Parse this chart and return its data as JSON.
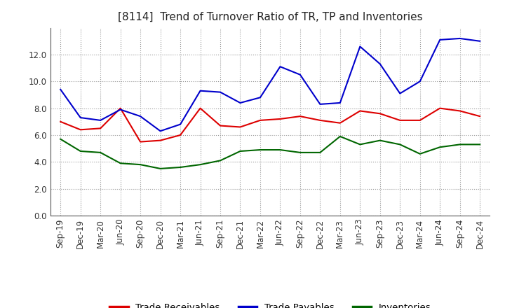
{
  "title": "[8114]  Trend of Turnover Ratio of TR, TP and Inventories",
  "x_labels": [
    "Sep-19",
    "Dec-19",
    "Mar-20",
    "Jun-20",
    "Sep-20",
    "Dec-20",
    "Mar-21",
    "Jun-21",
    "Sep-21",
    "Dec-21",
    "Mar-22",
    "Jun-22",
    "Sep-22",
    "Dec-22",
    "Mar-23",
    "Jun-23",
    "Sep-23",
    "Dec-23",
    "Mar-24",
    "Jun-24",
    "Sep-24",
    "Dec-24"
  ],
  "trade_receivables": [
    7.0,
    6.4,
    6.5,
    8.0,
    5.5,
    5.6,
    6.0,
    8.0,
    6.7,
    6.6,
    7.1,
    7.2,
    7.4,
    7.1,
    6.9,
    7.8,
    7.6,
    7.1,
    7.1,
    8.0,
    7.8,
    7.4
  ],
  "trade_payables": [
    9.4,
    7.3,
    7.1,
    7.9,
    7.4,
    6.3,
    6.8,
    9.3,
    9.2,
    8.4,
    8.8,
    11.1,
    10.5,
    8.3,
    8.4,
    12.6,
    11.3,
    9.1,
    10.0,
    13.1,
    13.2,
    13.0
  ],
  "inventories": [
    5.7,
    4.8,
    4.7,
    3.9,
    3.8,
    3.5,
    3.6,
    3.8,
    4.1,
    4.8,
    4.9,
    4.9,
    4.7,
    4.7,
    5.9,
    5.3,
    5.6,
    5.3,
    4.6,
    5.1,
    5.3,
    5.3
  ],
  "line_color_tr": "#dd0000",
  "line_color_tp": "#0000cc",
  "line_color_inv": "#006600",
  "ylim": [
    0.0,
    14.0
  ],
  "yticks": [
    0.0,
    2.0,
    4.0,
    6.0,
    8.0,
    10.0,
    12.0
  ],
  "background_color": "#ffffff",
  "plot_bg_color": "#ffffff",
  "legend_labels": [
    "Trade Receivables",
    "Trade Payables",
    "Inventories"
  ],
  "title_fontsize": 11,
  "axis_fontsize": 8.5,
  "legend_fontsize": 9.5
}
